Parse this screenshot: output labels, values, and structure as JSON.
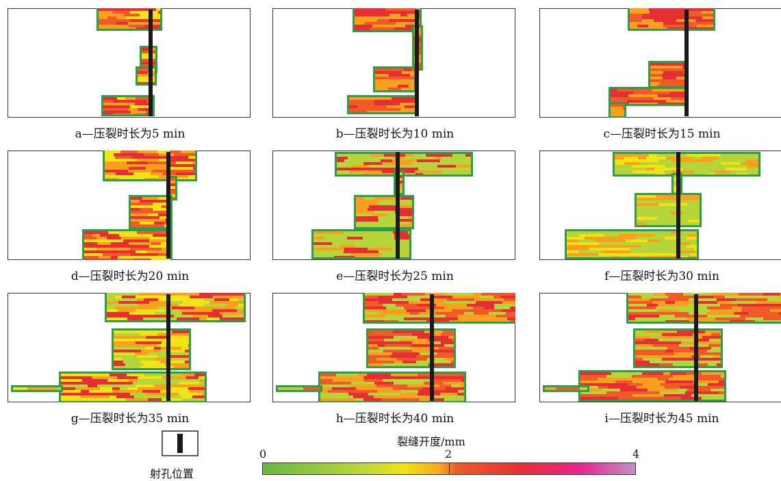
{
  "panels": [
    {
      "id": "a",
      "caption": "a—压裂时长为5  min",
      "minutes": 5
    },
    {
      "id": "b",
      "caption": "b—压裂时长为10  min",
      "minutes": 10
    },
    {
      "id": "c",
      "caption": "c—压裂时长为15  min",
      "minutes": 15
    },
    {
      "id": "d",
      "caption": "d—压裂时长为20  min",
      "minutes": 20
    },
    {
      "id": "e",
      "caption": "e—压裂时长为25  min",
      "minutes": 25
    },
    {
      "id": "f",
      "caption": "f—压裂时长为30  min",
      "minutes": 30
    },
    {
      "id": "g",
      "caption": "g—压裂时长为35  min",
      "minutes": 35
    },
    {
      "id": "h",
      "caption": "h—压裂时长为40  min",
      "minutes": 40
    },
    {
      "id": "i",
      "caption": "i—压裂时长为45  min",
      "minutes": 45
    }
  ],
  "legend": {
    "perforation_label": "射孔位置",
    "colorbar_title": "裂缝开度/mm",
    "ticks": [
      "0",
      "2",
      "4"
    ],
    "colors": {
      "green": "#67b644",
      "light_green": "#b5d53a",
      "yellow": "#f2e414",
      "orange": "#f9a11e",
      "red_orange": "#f05a28",
      "red": "#e62e35",
      "magenta": "#e9258e",
      "lilac": "#c18fc4",
      "edge_green": "#2e9e46",
      "well": "#1a1a1a"
    }
  }
}
